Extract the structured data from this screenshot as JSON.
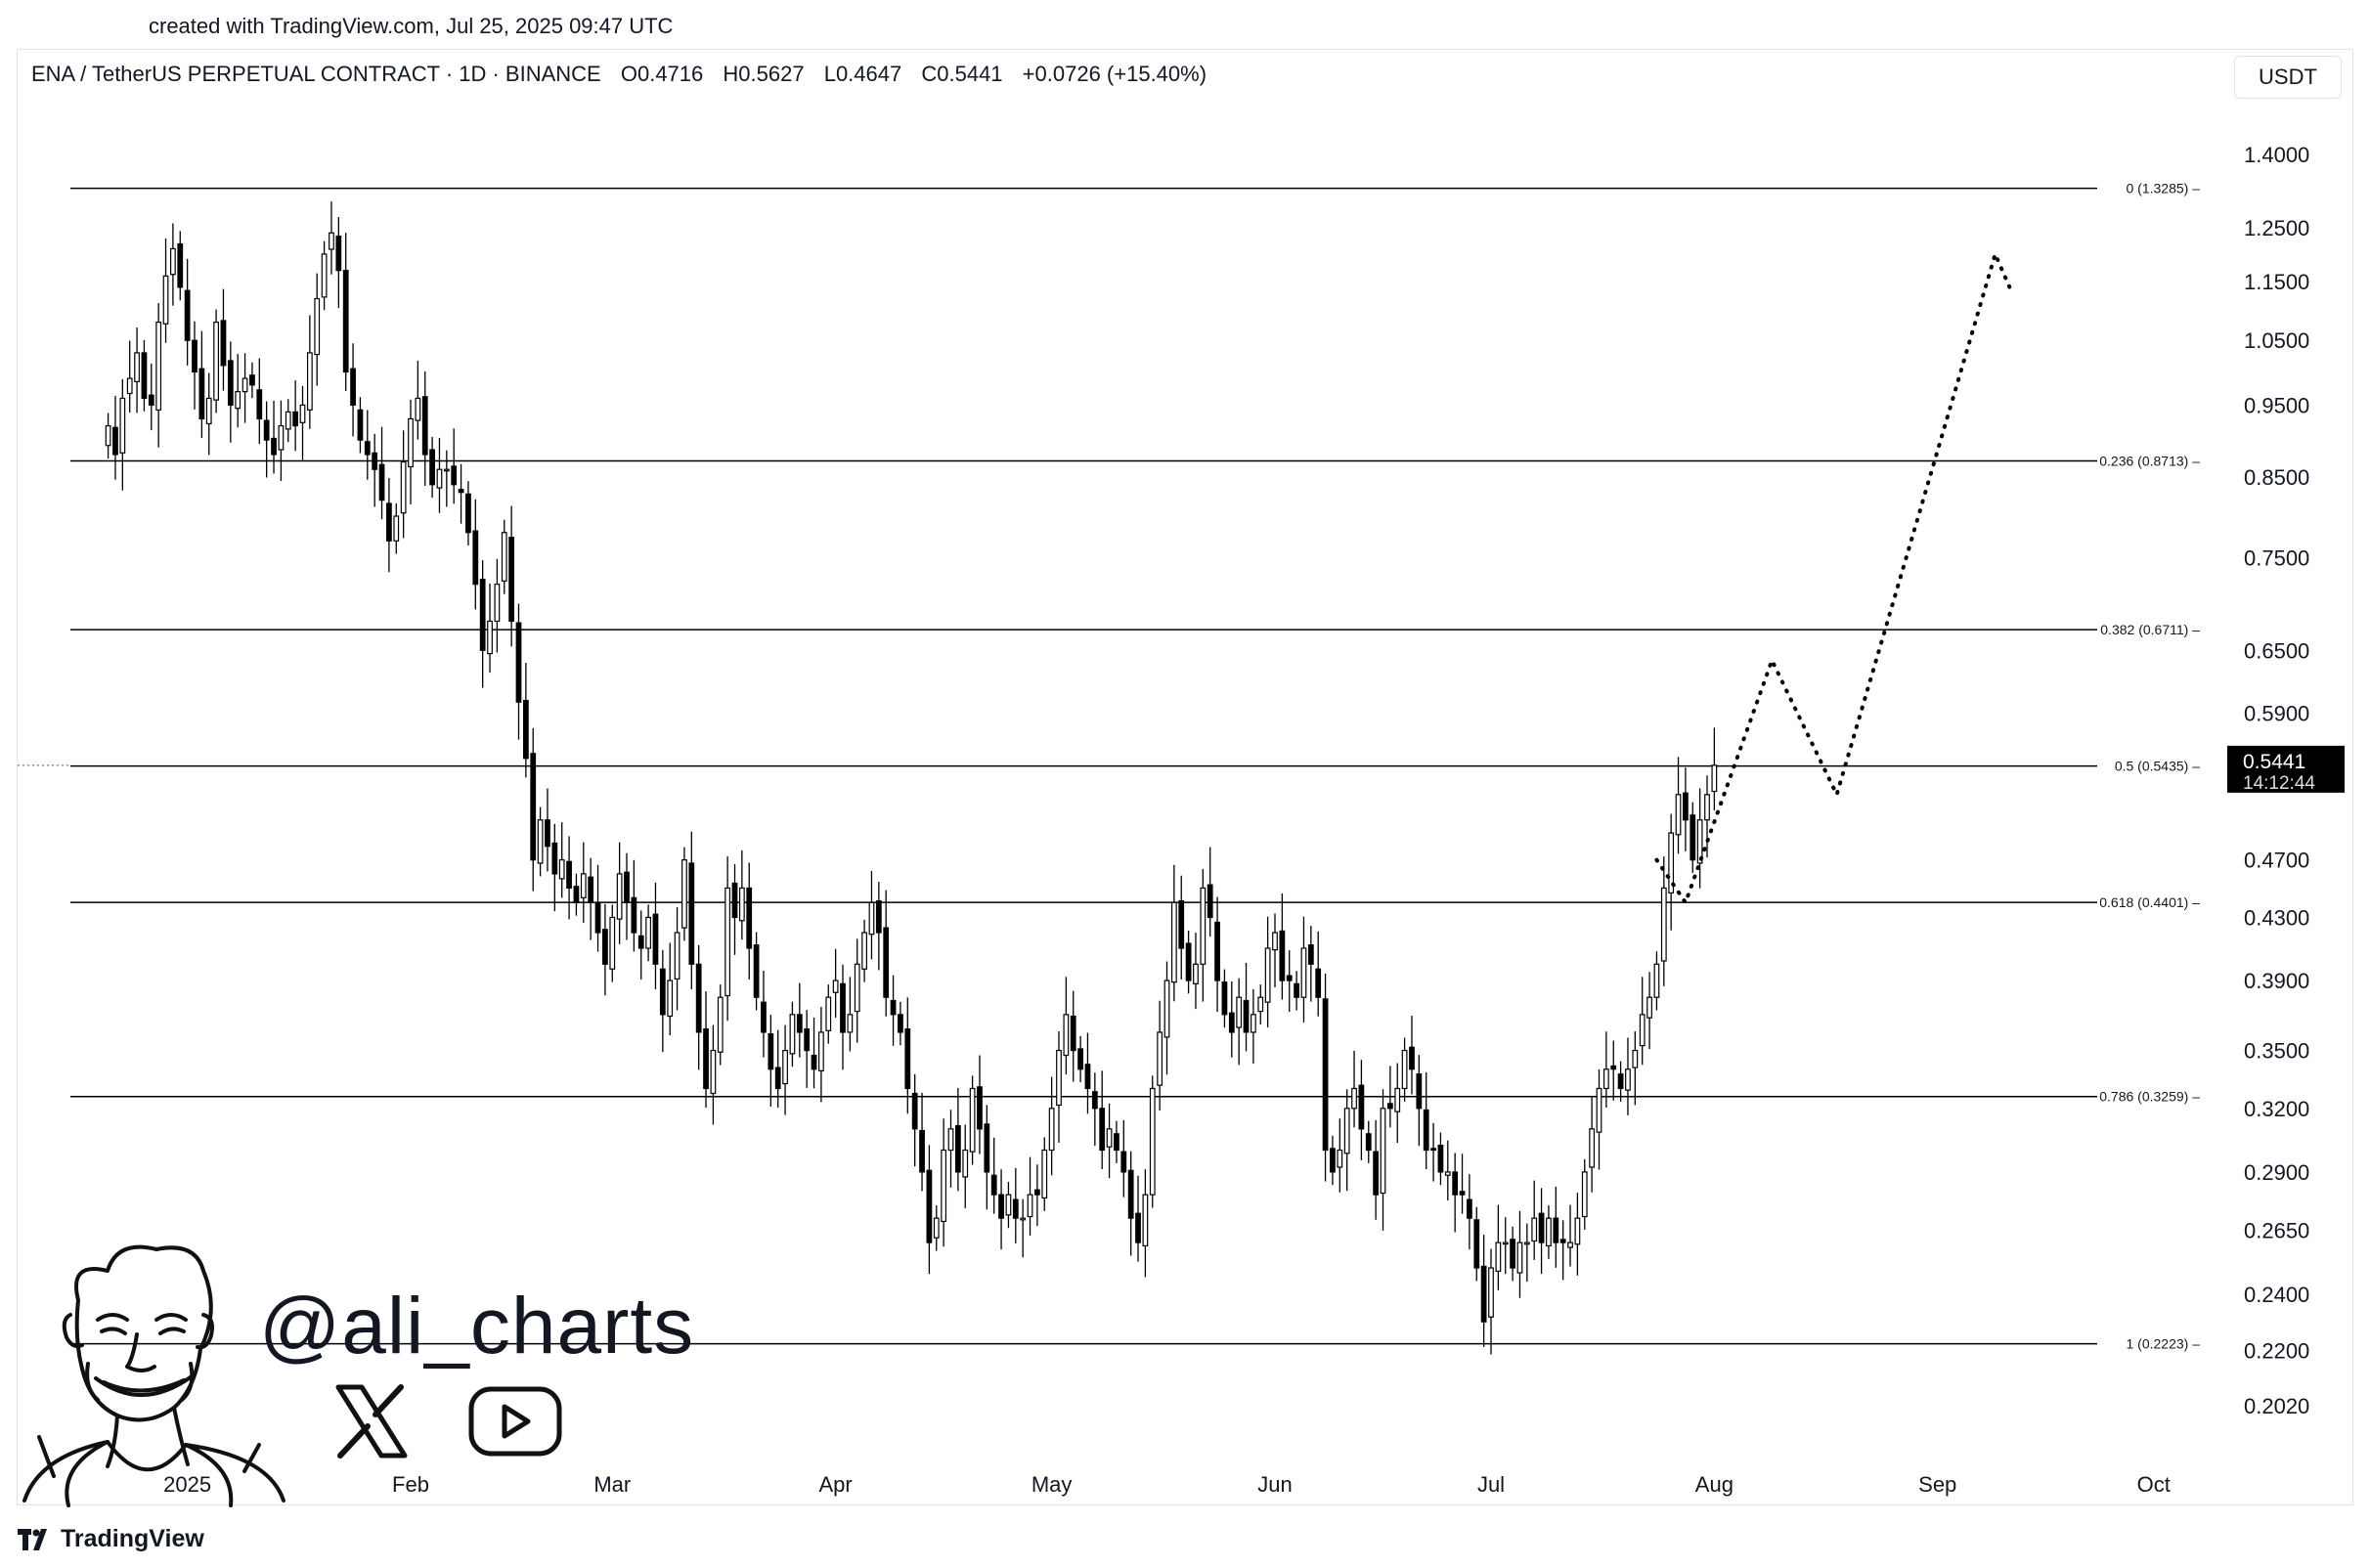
{
  "credit": "created with TradingView.com, Jul 25, 2025 09:47 UTC",
  "header": {
    "symbol": "ENA / TetherUS PERPETUAL CONTRACT · 1D · BINANCE",
    "open": "O0.4716",
    "high": "H0.5627",
    "low": "L0.4647",
    "close": "C0.5441",
    "change": "+0.0726 (+15.40%)"
  },
  "currency_button": "USDT",
  "watermark": {
    "handle": "@ali_charts",
    "icons": [
      "x-logo-icon",
      "youtube-icon",
      "caricature-avatar"
    ]
  },
  "footer": {
    "brand": "TradingView"
  },
  "chart_data": {
    "type": "candlestick",
    "scale": "log",
    "ylim": [
      0.19,
      1.5
    ],
    "y_ticks": [
      1.4,
      1.25,
      1.15,
      1.05,
      0.95,
      0.85,
      0.75,
      0.65,
      0.59,
      0.47,
      0.43,
      0.39,
      0.35,
      0.32,
      0.29,
      0.265,
      0.24,
      0.22,
      0.202
    ],
    "y_tick_labels": [
      "1.4000",
      "1.2500",
      "1.1500",
      "1.0500",
      "0.9500",
      "0.8500",
      "0.7500",
      "0.6500",
      "0.5900",
      "0.4700",
      "0.4300",
      "0.3900",
      "0.3500",
      "0.3200",
      "0.2900",
      "0.2650",
      "0.2400",
      "0.2200",
      "0.2020"
    ],
    "x_labels": [
      {
        "label": "2025",
        "date": "2025-01-01"
      },
      {
        "label": "Feb",
        "date": "2025-02-01"
      },
      {
        "label": "Mar",
        "date": "2025-03-01"
      },
      {
        "label": "Apr",
        "date": "2025-04-01"
      },
      {
        "label": "May",
        "date": "2025-05-01"
      },
      {
        "label": "Jun",
        "date": "2025-06-01"
      },
      {
        "label": "Jul",
        "date": "2025-07-01"
      },
      {
        "label": "Aug",
        "date": "2025-08-01"
      },
      {
        "label": "Sep",
        "date": "2025-09-01"
      },
      {
        "label": "Oct",
        "date": "2025-10-01"
      }
    ],
    "start_date": "2024-12-21",
    "candle_closes": [
      0.92,
      0.88,
      0.96,
      0.99,
      1.03,
      0.96,
      0.95,
      1.08,
      1.16,
      1.21,
      1.14,
      1.05,
      1.0,
      0.93,
      0.96,
      1.08,
      1.01,
      0.95,
      0.97,
      0.99,
      0.98,
      0.93,
      0.9,
      0.88,
      0.92,
      0.94,
      0.92,
      0.95,
      1.03,
      1.12,
      1.2,
      1.24,
      1.17,
      1.0,
      0.95,
      0.9,
      0.88,
      0.86,
      0.82,
      0.77,
      0.8,
      0.87,
      0.93,
      0.96,
      0.88,
      0.84,
      0.86,
      0.86,
      0.84,
      0.83,
      0.78,
      0.72,
      0.65,
      0.68,
      0.72,
      0.78,
      0.68,
      0.6,
      0.55,
      0.47,
      0.5,
      0.48,
      0.46,
      0.47,
      0.45,
      0.44,
      0.46,
      0.44,
      0.42,
      0.4,
      0.43,
      0.46,
      0.44,
      0.42,
      0.41,
      0.43,
      0.4,
      0.37,
      0.39,
      0.42,
      0.47,
      0.4,
      0.36,
      0.33,
      0.35,
      0.38,
      0.45,
      0.43,
      0.45,
      0.41,
      0.38,
      0.36,
      0.34,
      0.33,
      0.35,
      0.37,
      0.36,
      0.35,
      0.34,
      0.36,
      0.38,
      0.39,
      0.36,
      0.37,
      0.4,
      0.42,
      0.44,
      0.42,
      0.38,
      0.37,
      0.36,
      0.33,
      0.31,
      0.29,
      0.26,
      0.27,
      0.3,
      0.31,
      0.29,
      0.3,
      0.33,
      0.31,
      0.29,
      0.28,
      0.27,
      0.28,
      0.27,
      0.27,
      0.28,
      0.28,
      0.3,
      0.32,
      0.35,
      0.37,
      0.35,
      0.34,
      0.33,
      0.32,
      0.3,
      0.31,
      0.3,
      0.29,
      0.27,
      0.26,
      0.28,
      0.33,
      0.36,
      0.39,
      0.44,
      0.41,
      0.39,
      0.4,
      0.45,
      0.43,
      0.39,
      0.37,
      0.36,
      0.38,
      0.36,
      0.37,
      0.38,
      0.41,
      0.42,
      0.39,
      0.39,
      0.38,
      0.41,
      0.4,
      0.38,
      0.3,
      0.29,
      0.3,
      0.32,
      0.33,
      0.31,
      0.3,
      0.28,
      0.32,
      0.32,
      0.33,
      0.35,
      0.34,
      0.32,
      0.3,
      0.3,
      0.29,
      0.29,
      0.28,
      0.28,
      0.27,
      0.25,
      0.23,
      0.25,
      0.26,
      0.26,
      0.25,
      0.26,
      0.26,
      0.27,
      0.26,
      0.27,
      0.26,
      0.26,
      0.26,
      0.27,
      0.29,
      0.31,
      0.33,
      0.34,
      0.34,
      0.33,
      0.34,
      0.35,
      0.37,
      0.38,
      0.4,
      0.45,
      0.49,
      0.52,
      0.5,
      0.47,
      0.5,
      0.52,
      0.5441
    ],
    "fib_levels": [
      {
        "label": "0 (1.3285)",
        "value": 1.3285
      },
      {
        "label": "0.236 (0.8713)",
        "value": 0.8713
      },
      {
        "label": "0.382 (0.6711)",
        "value": 0.6711
      },
      {
        "label": "0.5 (0.5435)",
        "value": 0.5435
      },
      {
        "label": "0.618 (0.4401)",
        "value": 0.4401
      },
      {
        "label": "0.786 (0.3259)",
        "value": 0.3259
      },
      {
        "label": "1 (0.2223)",
        "value": 0.2223
      }
    ],
    "last_price": {
      "price": "0.5441",
      "countdown": "14:12:44"
    },
    "projection": [
      {
        "date": "2025-07-24",
        "value": 0.47
      },
      {
        "date": "2025-07-28",
        "value": 0.44
      },
      {
        "date": "2025-08-09",
        "value": 0.64
      },
      {
        "date": "2025-08-18",
        "value": 0.52
      },
      {
        "date": "2025-09-09",
        "value": 1.2
      },
      {
        "date": "2025-09-11",
        "value": 1.14
      }
    ],
    "colors": {
      "up": "#ffffff",
      "down": "#000000",
      "wick": "#000000",
      "fib": "#000000",
      "projection": "#000000"
    }
  }
}
